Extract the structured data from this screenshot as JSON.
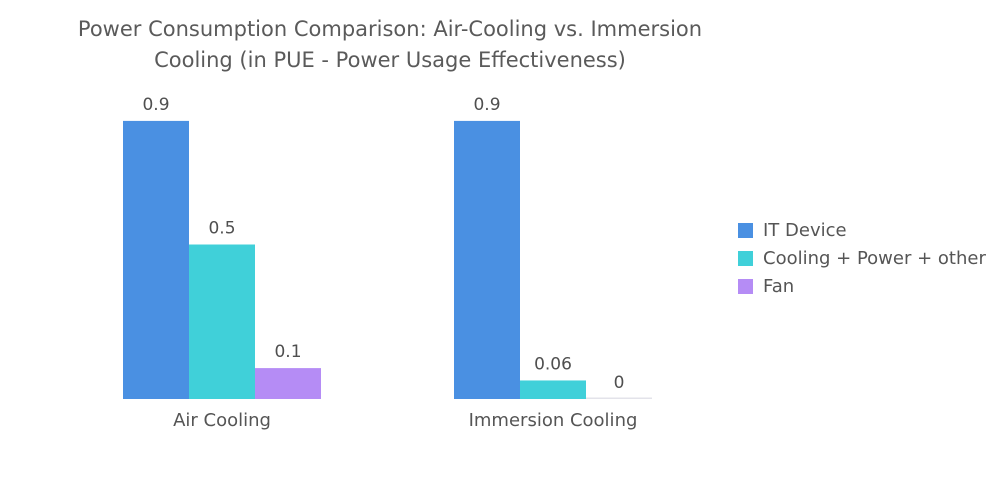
{
  "chart_data": {
    "type": "bar",
    "title": "Power Consumption Comparison: Air-Cooling vs. Immersion\nCooling (in PUE - Power Usage Effectiveness)",
    "categories": [
      "Air Cooling",
      "Immersion Cooling"
    ],
    "series": [
      {
        "name": "IT Device",
        "color": "#4a90e2",
        "values": [
          0.9,
          0.9
        ],
        "labels": [
          "0.9",
          "0.9"
        ]
      },
      {
        "name": "Cooling + Power + other",
        "color": "#40d0d9",
        "values": [
          0.5,
          0.06
        ],
        "labels": [
          "0.5",
          "0.06"
        ]
      },
      {
        "name": "Fan",
        "color": "#b58cf5",
        "values": [
          0.1,
          0
        ],
        "labels": [
          "0.1",
          "0"
        ]
      }
    ],
    "xlabel": "",
    "ylabel": "",
    "ylim": [
      0,
      1
    ],
    "grid": false,
    "legend_position": "right"
  }
}
